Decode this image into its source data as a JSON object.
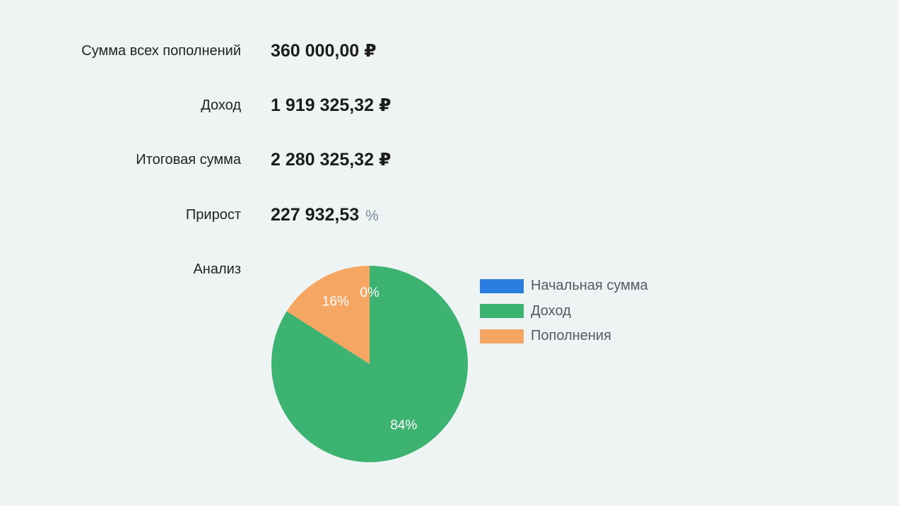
{
  "summary": {
    "rows": [
      {
        "label": "Сумма всех пополнений",
        "value": "360 000,00",
        "unit": "₽"
      },
      {
        "label": "Доход",
        "value": "1 919 325,32",
        "unit": "₽"
      },
      {
        "label": "Итоговая сумма",
        "value": "2 280 325,32",
        "unit": "₽"
      },
      {
        "label": "Прирост",
        "value": "227 932,53",
        "unit": "%"
      }
    ],
    "analysis_label": "Анализ"
  },
  "colors": {
    "initial": "#2a7de1",
    "income": "#3cb371",
    "deposits": "#f4a662"
  },
  "chart_data": {
    "type": "pie",
    "title": "",
    "legend_position": "right",
    "slices": [
      {
        "name": "Начальная сумма",
        "value": 0,
        "label": "0%",
        "color": "#2a7de1"
      },
      {
        "name": "Доход",
        "value": 84,
        "label": "84%",
        "color": "#3cb371"
      },
      {
        "name": "Пополнения",
        "value": 16,
        "label": "16%",
        "color": "#f4a662"
      }
    ]
  }
}
